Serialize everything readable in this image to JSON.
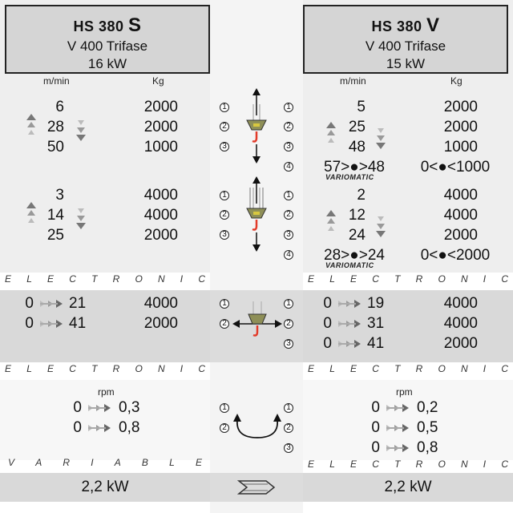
{
  "left": {
    "model_prefix": "HS 380 ",
    "model_suffix": "S",
    "voltage": "V 400  Trifase",
    "power": "16 kW",
    "unit_speed": "m/min",
    "unit_load": "Kg",
    "block1": [
      {
        "speed": "6",
        "load": "2000"
      },
      {
        "speed": "28",
        "load": "2000"
      },
      {
        "speed": "50",
        "load": "1000"
      }
    ],
    "block2": [
      {
        "speed": "3",
        "load": "4000"
      },
      {
        "speed": "14",
        "load": "4000"
      },
      {
        "speed": "25",
        "load": "2000"
      }
    ],
    "trolley": [
      {
        "from": "0",
        "to": "21",
        "load": "4000"
      },
      {
        "from": "0",
        "to": "41",
        "load": "2000"
      }
    ],
    "rpm_label": "rpm",
    "rotation": [
      {
        "from": "0",
        "to": "0,3"
      },
      {
        "from": "0",
        "to": "0,8"
      }
    ],
    "footer_power": "2,2 kW"
  },
  "right": {
    "model_prefix": "HS 380 ",
    "model_suffix": "V",
    "voltage": "V 400  Trifase",
    "power": "15 kW",
    "unit_speed": "m/min",
    "unit_load": "Kg",
    "block1": [
      {
        "speed": "5",
        "load": "2000"
      },
      {
        "speed": "25",
        "load": "2000"
      },
      {
        "speed": "48",
        "load": "1000"
      }
    ],
    "block1_var": {
      "speed": "57>●>48",
      "load": "0<●<1000",
      "label": "VARIOMATIC"
    },
    "block2": [
      {
        "speed": "2",
        "load": "4000"
      },
      {
        "speed": "12",
        "load": "4000"
      },
      {
        "speed": "24",
        "load": "2000"
      }
    ],
    "block2_var": {
      "speed": "28>●>24",
      "load": "0<●<2000",
      "label": "VARIOMATIC"
    },
    "trolley": [
      {
        "from": "0",
        "to": "19",
        "load": "4000"
      },
      {
        "from": "0",
        "to": "31",
        "load": "4000"
      },
      {
        "from": "0",
        "to": "41",
        "load": "2000"
      }
    ],
    "rpm_label": "rpm",
    "rotation": [
      {
        "from": "0",
        "to": "0,2"
      },
      {
        "from": "0",
        "to": "0,5"
      },
      {
        "from": "0",
        "to": "0,8"
      }
    ],
    "footer_power": "2,2 kW"
  },
  "dividers": {
    "electronic": [
      "E",
      "L",
      "E",
      "C",
      "T",
      "R",
      "O",
      "N",
      "I",
      "C"
    ],
    "variable": [
      "V",
      "A",
      "R",
      "I",
      "A",
      "B",
      "L",
      "E"
    ]
  },
  "mid": {
    "n1": "1",
    "n2": "2",
    "n3": "3",
    "n4": "4"
  },
  "colors": {
    "header_bg": "#d5d5d5",
    "band_light": "#eeeeee",
    "band_mid": "#d9d9d9",
    "hook_red": "#e23b2a",
    "hoist_olive": "#8e8f57"
  }
}
